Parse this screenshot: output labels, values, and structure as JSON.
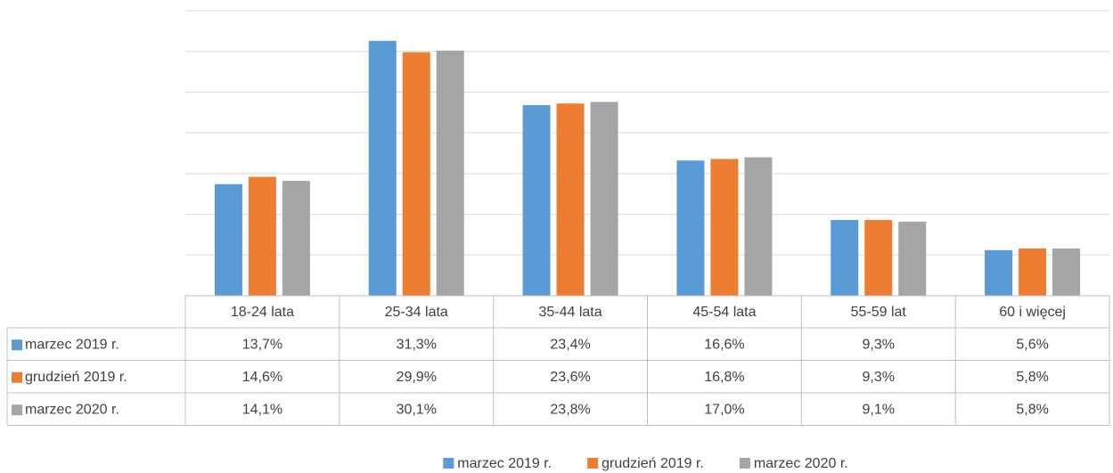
{
  "chart_data": {
    "type": "bar",
    "categories": [
      "18-24 lata",
      "25-34 lata",
      "35-44 lata",
      "45-54 lata",
      "55-59 lat",
      "60 i więcej"
    ],
    "series": [
      {
        "name": "marzec 2019 r.",
        "color": "#5b9bd5",
        "values": [
          13.7,
          31.3,
          23.4,
          16.6,
          9.3,
          5.6
        ],
        "value_labels": [
          "13,7%",
          "31,3%",
          "23,4%",
          "16,6%",
          "9,3%",
          "5,6%"
        ]
      },
      {
        "name": "grudzień 2019 r.",
        "color": "#ed7d31",
        "values": [
          14.6,
          29.9,
          23.6,
          16.8,
          9.3,
          5.8
        ],
        "value_labels": [
          "14,6%",
          "29,9%",
          "23,6%",
          "16,8%",
          "9,3%",
          "5,8%"
        ]
      },
      {
        "name": "marzec 2020 r.",
        "color": "#a5a5a5",
        "values": [
          14.1,
          30.1,
          23.8,
          17.0,
          9.1,
          5.8
        ],
        "value_labels": [
          "14,1%",
          "30,1%",
          "23,8%",
          "17,0%",
          "9,1%",
          "5,8%"
        ]
      }
    ],
    "ylim": [
      0,
      35
    ],
    "yticks": [
      0,
      5,
      10,
      15,
      20,
      25,
      30,
      35
    ],
    "grid": true,
    "legend": "bottom"
  }
}
